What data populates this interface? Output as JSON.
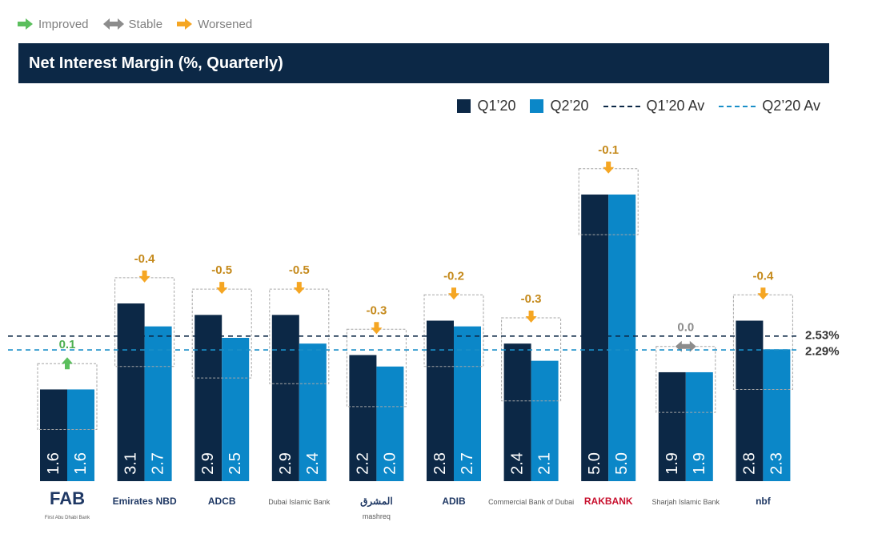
{
  "status_legend": [
    {
      "label": "Improved",
      "color": "#5bbf5d",
      "icon": "arrow-right-icon"
    },
    {
      "label": "Stable",
      "color": "#8c8c8c",
      "icon": "double-arrow-icon"
    },
    {
      "label": "Worsened",
      "color": "#f5a623",
      "icon": "arrow-right-icon"
    }
  ],
  "colors": {
    "q1": "#0c2846",
    "q2": "#0b87c8",
    "improved": "#5bbf5d",
    "stable": "#8c8c8c",
    "worsened": "#f5a623",
    "delta_text": "#c58a1c",
    "delta_text_improved": "#4caf50"
  },
  "chart_data": {
    "type": "bar",
    "title": "Net Interest Margin (%, Quarterly)",
    "categories": [
      "FAB",
      "Emirates NBD",
      "ADCB",
      "Dubai Islamic Bank",
      "mashreq",
      "ADIB",
      "Commercial Bank of Dubai",
      "RAKBANK",
      "Sharjah Islamic Bank",
      "nbf"
    ],
    "series": [
      {
        "name": "Q1’20",
        "values": [
          1.6,
          3.1,
          2.9,
          2.9,
          2.2,
          2.8,
          2.4,
          5.0,
          1.9,
          2.8
        ]
      },
      {
        "name": "Q2’20",
        "values": [
          1.6,
          2.7,
          2.5,
          2.4,
          2.0,
          2.7,
          2.1,
          5.0,
          1.9,
          2.3
        ]
      }
    ],
    "value_labels": {
      "q1": [
        "1.6",
        "3.1",
        "2.9",
        "2.9",
        "2.2",
        "2.8",
        "2.4",
        "5.0",
        "1.9",
        "2.8"
      ],
      "q2": [
        "1.6",
        "2.7",
        "2.5",
        "2.4",
        "2.0",
        "2.7",
        "2.1",
        "5.0",
        "1.9",
        "2.3"
      ]
    },
    "delta_labels": [
      "0.1",
      "-0.4",
      "-0.5",
      "-0.5",
      "-0.3",
      "-0.2",
      "-0.3",
      "-0.1",
      "0.0",
      "-0.4"
    ],
    "delta_status": [
      "improved",
      "worsened",
      "worsened",
      "worsened",
      "worsened",
      "worsened",
      "worsened",
      "worsened",
      "stable",
      "worsened"
    ],
    "averages": [
      {
        "name": "Q1’20 Av",
        "value": 2.53,
        "label": "2.53%"
      },
      {
        "name": "Q2’20 Av",
        "value": 2.29,
        "label": "2.29%"
      }
    ],
    "ylim": [
      0,
      5.5
    ],
    "xlabel": "",
    "ylabel": "",
    "grid": false,
    "legend_position": "top-right"
  },
  "logos": [
    {
      "main": "FAB",
      "sub": "First Abu Dhabi Bank"
    },
    {
      "main": "Emirates NBD",
      "sub": ""
    },
    {
      "main": "ADCB",
      "sub": ""
    },
    {
      "main": "",
      "sub": "Dubai Islamic Bank"
    },
    {
      "main": "المشرق",
      "sub": "mashreq"
    },
    {
      "main": "ADIB",
      "sub": ""
    },
    {
      "main": "",
      "sub": "Commercial Bank of Dubai"
    },
    {
      "main": "RAKBANK",
      "sub": ""
    },
    {
      "main": "",
      "sub": "Sharjah Islamic Bank"
    },
    {
      "main": "nbf",
      "sub": ""
    }
  ]
}
